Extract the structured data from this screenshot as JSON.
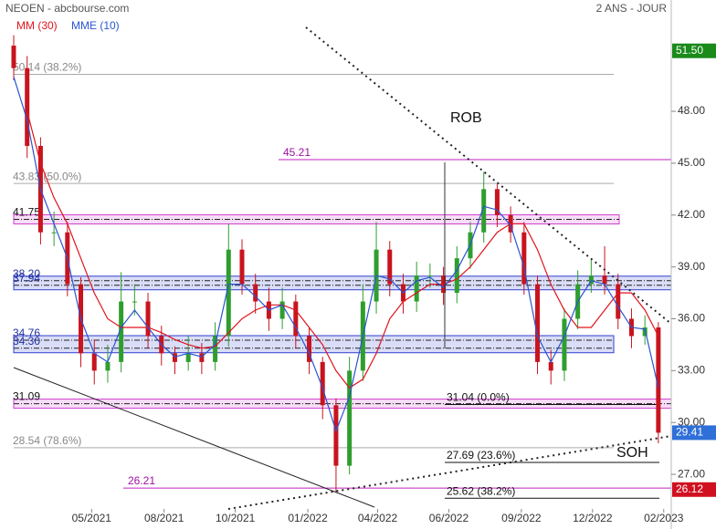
{
  "chart_data": {
    "type": "candlestick",
    "title": "NEOEN - abcbourse.com",
    "period": "2 ANS - JOUR",
    "up_color": "#2e9e2e",
    "down_color": "#c8141e",
    "x": [
      0,
      1,
      2,
      3,
      4,
      5,
      6,
      7,
      8,
      9,
      10,
      11,
      12,
      13,
      14,
      15,
      16,
      17,
      18,
      19,
      20,
      21,
      22,
      23,
      24,
      25,
      26,
      27,
      28,
      29,
      30,
      31,
      32,
      33,
      34,
      35,
      36,
      37,
      38,
      39,
      40,
      41,
      42,
      43,
      44,
      45,
      46,
      47,
      48
    ],
    "open": [
      51.8,
      50.5,
      46,
      41,
      41,
      38,
      34,
      33,
      33.5,
      37,
      37,
      35,
      34,
      33.5,
      34,
      33.5,
      35,
      40,
      38,
      37,
      36,
      37,
      35,
      33.5,
      31,
      27.5,
      33,
      37,
      40,
      38,
      37,
      38.5,
      38.5,
      37.5,
      39.5,
      41,
      43.5,
      42,
      41,
      38,
      33.5,
      33,
      36,
      38,
      38.5,
      38,
      36,
      35,
      35.5
    ],
    "high": [
      52.4,
      51.2,
      46.5,
      42.2,
      41.6,
      38.4,
      34.8,
      34.5,
      38.7,
      38,
      37.5,
      35.6,
      34.4,
      35,
      34.6,
      35.8,
      41.5,
      40.6,
      38.6,
      37.8,
      37.8,
      37.4,
      35.5,
      33.8,
      31.4,
      33.8,
      38,
      41.6,
      40.5,
      38.6,
      39.3,
      39.2,
      39,
      40.2,
      41.6,
      44.5,
      43.8,
      42.5,
      41.6,
      38.5,
      34.2,
      36.6,
      38.8,
      39.4,
      40.2,
      38.6,
      36.6,
      36.2,
      35.8
    ],
    "low": [
      49.8,
      45.3,
      40.3,
      40.2,
      37.3,
      33.2,
      32.2,
      32.3,
      32.9,
      36.2,
      34.3,
      33.3,
      32.8,
      33,
      32.8,
      33,
      34.4,
      37.4,
      36.3,
      35.3,
      35.4,
      34.3,
      32.8,
      30.2,
      26,
      27,
      32.4,
      36.3,
      37.3,
      36.3,
      36.4,
      37.8,
      36.8,
      36.9,
      38.9,
      40.4,
      41.3,
      40.4,
      37.4,
      32.8,
      32.2,
      32.4,
      35.4,
      37.5,
      37.4,
      35.4,
      34.3,
      34.5,
      28.8
    ],
    "close": [
      50.5,
      46,
      41,
      41,
      38,
      34,
      33,
      33.5,
      37,
      37,
      35,
      34,
      33.5,
      34,
      33.5,
      35,
      40,
      38,
      37,
      36,
      37,
      35,
      33.5,
      31,
      27.5,
      33,
      37,
      40,
      38,
      37,
      38.5,
      38.5,
      37.5,
      39.5,
      41,
      43.5,
      42,
      41,
      38,
      33.5,
      33,
      36,
      38,
      38.5,
      38,
      36,
      35,
      35.5,
      29.41
    ],
    "series": [
      {
        "name": "MM (30)",
        "color": "#e0141e",
        "values": [
          null,
          48,
          45,
          43,
          41.5,
          39.5,
          37.5,
          36,
          35.5,
          35.5,
          35.5,
          35.2,
          34.8,
          34.5,
          34.3,
          34.4,
          35.2,
          36,
          36.5,
          36.8,
          36.8,
          36.5,
          35.5,
          34.5,
          33,
          32,
          32.5,
          34,
          36,
          37,
          37.5,
          38,
          38,
          38.3,
          39,
          40,
          41,
          41.5,
          41.5,
          40,
          38,
          36.5,
          35.5,
          35.5,
          36.5,
          37.5,
          37.5,
          36.5,
          35
        ]
      },
      {
        "name": "MME (10)",
        "color": "#2a55d0",
        "values": [
          50,
          47.5,
          43.5,
          41.5,
          39.5,
          36,
          34,
          33.5,
          35.5,
          36.5,
          35.5,
          34.5,
          33.8,
          34,
          33.8,
          34.5,
          38,
          38,
          37.3,
          36.5,
          36.8,
          35.5,
          34,
          32,
          29.5,
          31.5,
          35,
          38.5,
          38.3,
          37.5,
          38.2,
          38.4,
          37.8,
          38.8,
          40.3,
          42.5,
          42.3,
          41.4,
          39,
          35,
          33.5,
          35,
          37,
          38.2,
          38,
          36.7,
          35.5,
          35.4,
          32
        ]
      }
    ],
    "xlim": [
      -1.02,
      48.96
    ],
    "ylim": [
      25,
      54.44
    ],
    "yticks": [
      {
        "value": 48,
        "label": "48.00"
      },
      {
        "value": 45,
        "label": "45.00"
      },
      {
        "value": 42,
        "label": "42.00"
      },
      {
        "value": 39,
        "label": "39.00"
      },
      {
        "value": 36,
        "label": "36.00"
      },
      {
        "value": 33,
        "label": "33.00"
      },
      {
        "value": 30,
        "label": "30.00"
      },
      {
        "value": 27,
        "label": "27.00"
      }
    ],
    "xticks": [
      {
        "value": 5.8,
        "label": "05/2021"
      },
      {
        "value": 11.2,
        "label": "08/2021"
      },
      {
        "value": 16.5,
        "label": "10/2021"
      },
      {
        "value": 21.9,
        "label": "01/2022"
      },
      {
        "value": 27.1,
        "label": "04/2022"
      },
      {
        "value": 32.4,
        "label": "06/2022"
      },
      {
        "value": 37.8,
        "label": "09/2022"
      },
      {
        "value": 43.1,
        "label": "12/2022"
      },
      {
        "value": 48.4,
        "label": "02/2023"
      }
    ],
    "fib_levels": [
      {
        "value": 50.14,
        "label": "50.14  (38.2%)"
      },
      {
        "value": 43.83,
        "label": "43.83  (50.0%)"
      },
      {
        "value": 28.54,
        "label": "28.54  (78.6%)"
      }
    ],
    "magenta_levels": [
      {
        "value": 45.21,
        "label": "45.21"
      },
      {
        "value": 26.21,
        "label": "26.21"
      }
    ],
    "retrace_levels": [
      {
        "value": 31.04,
        "label": "31.04  (0.0%)"
      },
      {
        "value": 27.69,
        "label": "27.69  (23.6%)"
      },
      {
        "value": 25.62,
        "label": "25.62  (38.2%)"
      }
    ],
    "bands": [
      {
        "color": "#d040d0",
        "levels": [
          {
            "value": 41.75,
            "label": "41.75"
          }
        ]
      },
      {
        "color": "#3040d0",
        "levels": [
          {
            "value": 38.2,
            "label": "38.20"
          },
          {
            "value": 37.94,
            "label": "37.94"
          }
        ]
      },
      {
        "color": "#3040d0",
        "levels": [
          {
            "value": 34.76,
            "label": "34.76"
          },
          {
            "value": 34.3,
            "label": "34.30"
          }
        ]
      },
      {
        "color": "#d040d0",
        "levels": [
          {
            "value": 31.09,
            "label": "31.09"
          }
        ]
      }
    ],
    "annotations": [
      "ROB",
      "SOH"
    ],
    "price_labels": [
      {
        "value": 51.5,
        "label": "51.50",
        "color": "#1a8a1a"
      },
      {
        "value": 29.41,
        "label": "29.41",
        "color": "#2f6fd8"
      },
      {
        "value": 26.12,
        "label": "26.12",
        "color": "#d01020"
      }
    ]
  }
}
